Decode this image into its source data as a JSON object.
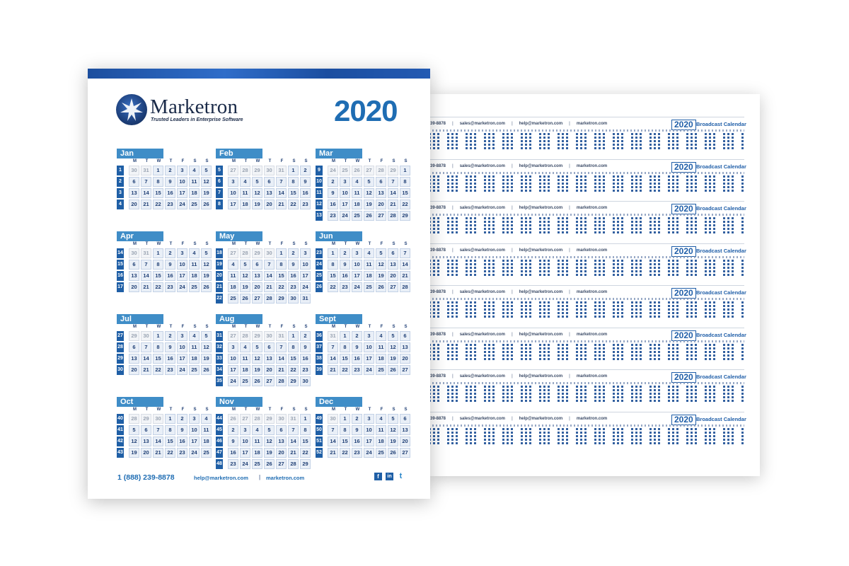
{
  "brand": {
    "name": "Marketron",
    "tagline": "Trusted Leaders in Enterprise Software"
  },
  "year": "2020",
  "weekday_labels": [
    "M",
    "T",
    "W",
    "T",
    "F",
    "S",
    "S"
  ],
  "months": [
    {
      "name": "Jan",
      "weeks": [
        1,
        2,
        3,
        4
      ],
      "lead": [
        30,
        31
      ],
      "days": 31,
      "trail": []
    },
    {
      "name": "Feb",
      "weeks": [
        5,
        6,
        7,
        8
      ],
      "lead": [
        27,
        28,
        29,
        30,
        31
      ],
      "days": 23,
      "trail": []
    },
    {
      "name": "Mar",
      "weeks": [
        9,
        10,
        11,
        12,
        13
      ],
      "lead": [
        24,
        25,
        26,
        27,
        28,
        29
      ],
      "days": 29,
      "trail": []
    },
    {
      "name": "Apr",
      "weeks": [
        14,
        15,
        16,
        17
      ],
      "lead": [
        30,
        31
      ],
      "days": 26,
      "trail": []
    },
    {
      "name": "May",
      "weeks": [
        18,
        19,
        20,
        21,
        22
      ],
      "lead": [
        27,
        28,
        29,
        30
      ],
      "days": 31,
      "trail": []
    },
    {
      "name": "Jun",
      "weeks": [
        23,
        24,
        25,
        26
      ],
      "lead": [],
      "days": 28,
      "trail": []
    },
    {
      "name": "Jul",
      "weeks": [
        27,
        28,
        29,
        30
      ],
      "lead": [
        29,
        30
      ],
      "days": 26,
      "trail": []
    },
    {
      "name": "Aug",
      "weeks": [
        31,
        32,
        33,
        34,
        35
      ],
      "lead": [
        27,
        28,
        29,
        30,
        31
      ],
      "days": 30,
      "trail": []
    },
    {
      "name": "Sept",
      "weeks": [
        36,
        37,
        38,
        39
      ],
      "lead": [
        31
      ],
      "days": 27,
      "trail": []
    },
    {
      "name": "Oct",
      "weeks": [
        40,
        41,
        42,
        43
      ],
      "lead": [
        28,
        29,
        30
      ],
      "days": 25,
      "trail": []
    },
    {
      "name": "Nov",
      "weeks": [
        44,
        45,
        46,
        47,
        48
      ],
      "lead": [
        26,
        27,
        28,
        29,
        30,
        31
      ],
      "days": 29,
      "trail": []
    },
    {
      "name": "Dec",
      "weeks": [
        49,
        50,
        51,
        52
      ],
      "lead": [
        30
      ],
      "days": 27,
      "trail": []
    }
  ],
  "footer": {
    "phone": "1 (888) 239-8878",
    "email": "help@marketron.com",
    "separator": "|",
    "website": "marketron.com",
    "social": [
      {
        "name": "facebook",
        "glyph": "f"
      },
      {
        "name": "linkedin",
        "glyph": "in"
      },
      {
        "name": "twitter",
        "glyph": "t"
      }
    ]
  },
  "broadcast": {
    "badge_year": "2020",
    "title": "Broadcast Calendar",
    "phone_fragment": "39-8878",
    "contacts": [
      "sales@marketron.com",
      "help@marketron.com",
      "marketron.com"
    ],
    "strip_count": 8
  },
  "colors": {
    "primary_blue": "#1f6db3",
    "dark_blue": "#1f5fa6",
    "month_tab": "#3f8dc7"
  }
}
